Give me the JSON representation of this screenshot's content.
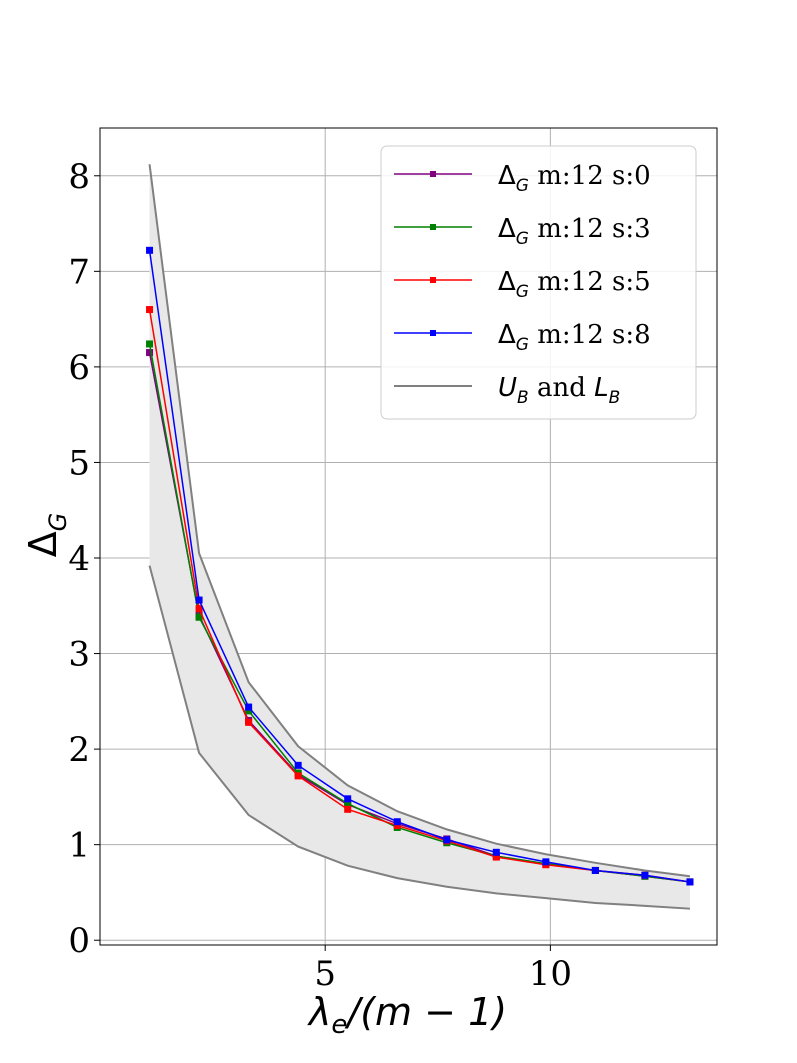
{
  "chart_data": {
    "type": "line",
    "title": "",
    "xlabel": "λe/(m − 1)",
    "ylabel": "ΔG",
    "xlim": [
      0.0,
      13.7
    ],
    "ylim": [
      -0.05,
      8.5
    ],
    "grid": true,
    "legend_position": "top-right",
    "x_ticks": [
      5,
      10
    ],
    "y_ticks": [
      0,
      1,
      2,
      3,
      4,
      5,
      6,
      7,
      8
    ],
    "x": [
      1.1,
      2.2,
      3.3,
      4.4,
      5.5,
      6.6,
      7.7,
      8.8,
      9.9,
      11.0,
      12.1,
      13.1
    ],
    "series": [
      {
        "name": "ΔG m:12 s:0",
        "legend_symbol": "Δ",
        "legend_sub": "G",
        "legend_rest": " m:12 s:0",
        "color": "#800080",
        "values": [
          6.15,
          3.4,
          2.3,
          1.73,
          1.42,
          1.22,
          1.06,
          0.88,
          0.8,
          0.73,
          0.67,
          0.61
        ]
      },
      {
        "name": "ΔG m:12 s:3",
        "legend_symbol": "Δ",
        "legend_sub": "G",
        "legend_rest": " m:12 s:3",
        "color": "#008000",
        "values": [
          6.24,
          3.38,
          2.4,
          1.75,
          1.43,
          1.18,
          1.02,
          0.88,
          0.8,
          0.73,
          0.67,
          0.61
        ]
      },
      {
        "name": "ΔG m:12 s:5",
        "legend_symbol": "Δ",
        "legend_sub": "G",
        "legend_rest": " m:12 s:5",
        "color": "#ff0000",
        "values": [
          6.6,
          3.47,
          2.28,
          1.72,
          1.37,
          1.2,
          1.04,
          0.87,
          0.79,
          0.73,
          0.68,
          0.61
        ]
      },
      {
        "name": "ΔG m:12 s:8",
        "legend_symbol": "Δ",
        "legend_sub": "G",
        "legend_rest": " m:12 s:8",
        "color": "#0000ff",
        "values": [
          7.22,
          3.56,
          2.44,
          1.83,
          1.48,
          1.24,
          1.05,
          0.92,
          0.82,
          0.73,
          0.68,
          0.61
        ]
      }
    ],
    "bounds": {
      "name": "UB and LB",
      "legend_u": "U",
      "legend_u_sub": "B",
      "legend_and": " and ",
      "legend_l": "L",
      "legend_l_sub": "B",
      "color": "#808080",
      "upper": [
        8.12,
        4.05,
        2.7,
        2.03,
        1.62,
        1.35,
        1.16,
        1.01,
        0.9,
        0.81,
        0.73,
        0.67
      ],
      "lower": [
        3.92,
        1.96,
        1.31,
        0.98,
        0.78,
        0.65,
        0.56,
        0.49,
        0.44,
        0.39,
        0.36,
        0.33
      ]
    }
  }
}
